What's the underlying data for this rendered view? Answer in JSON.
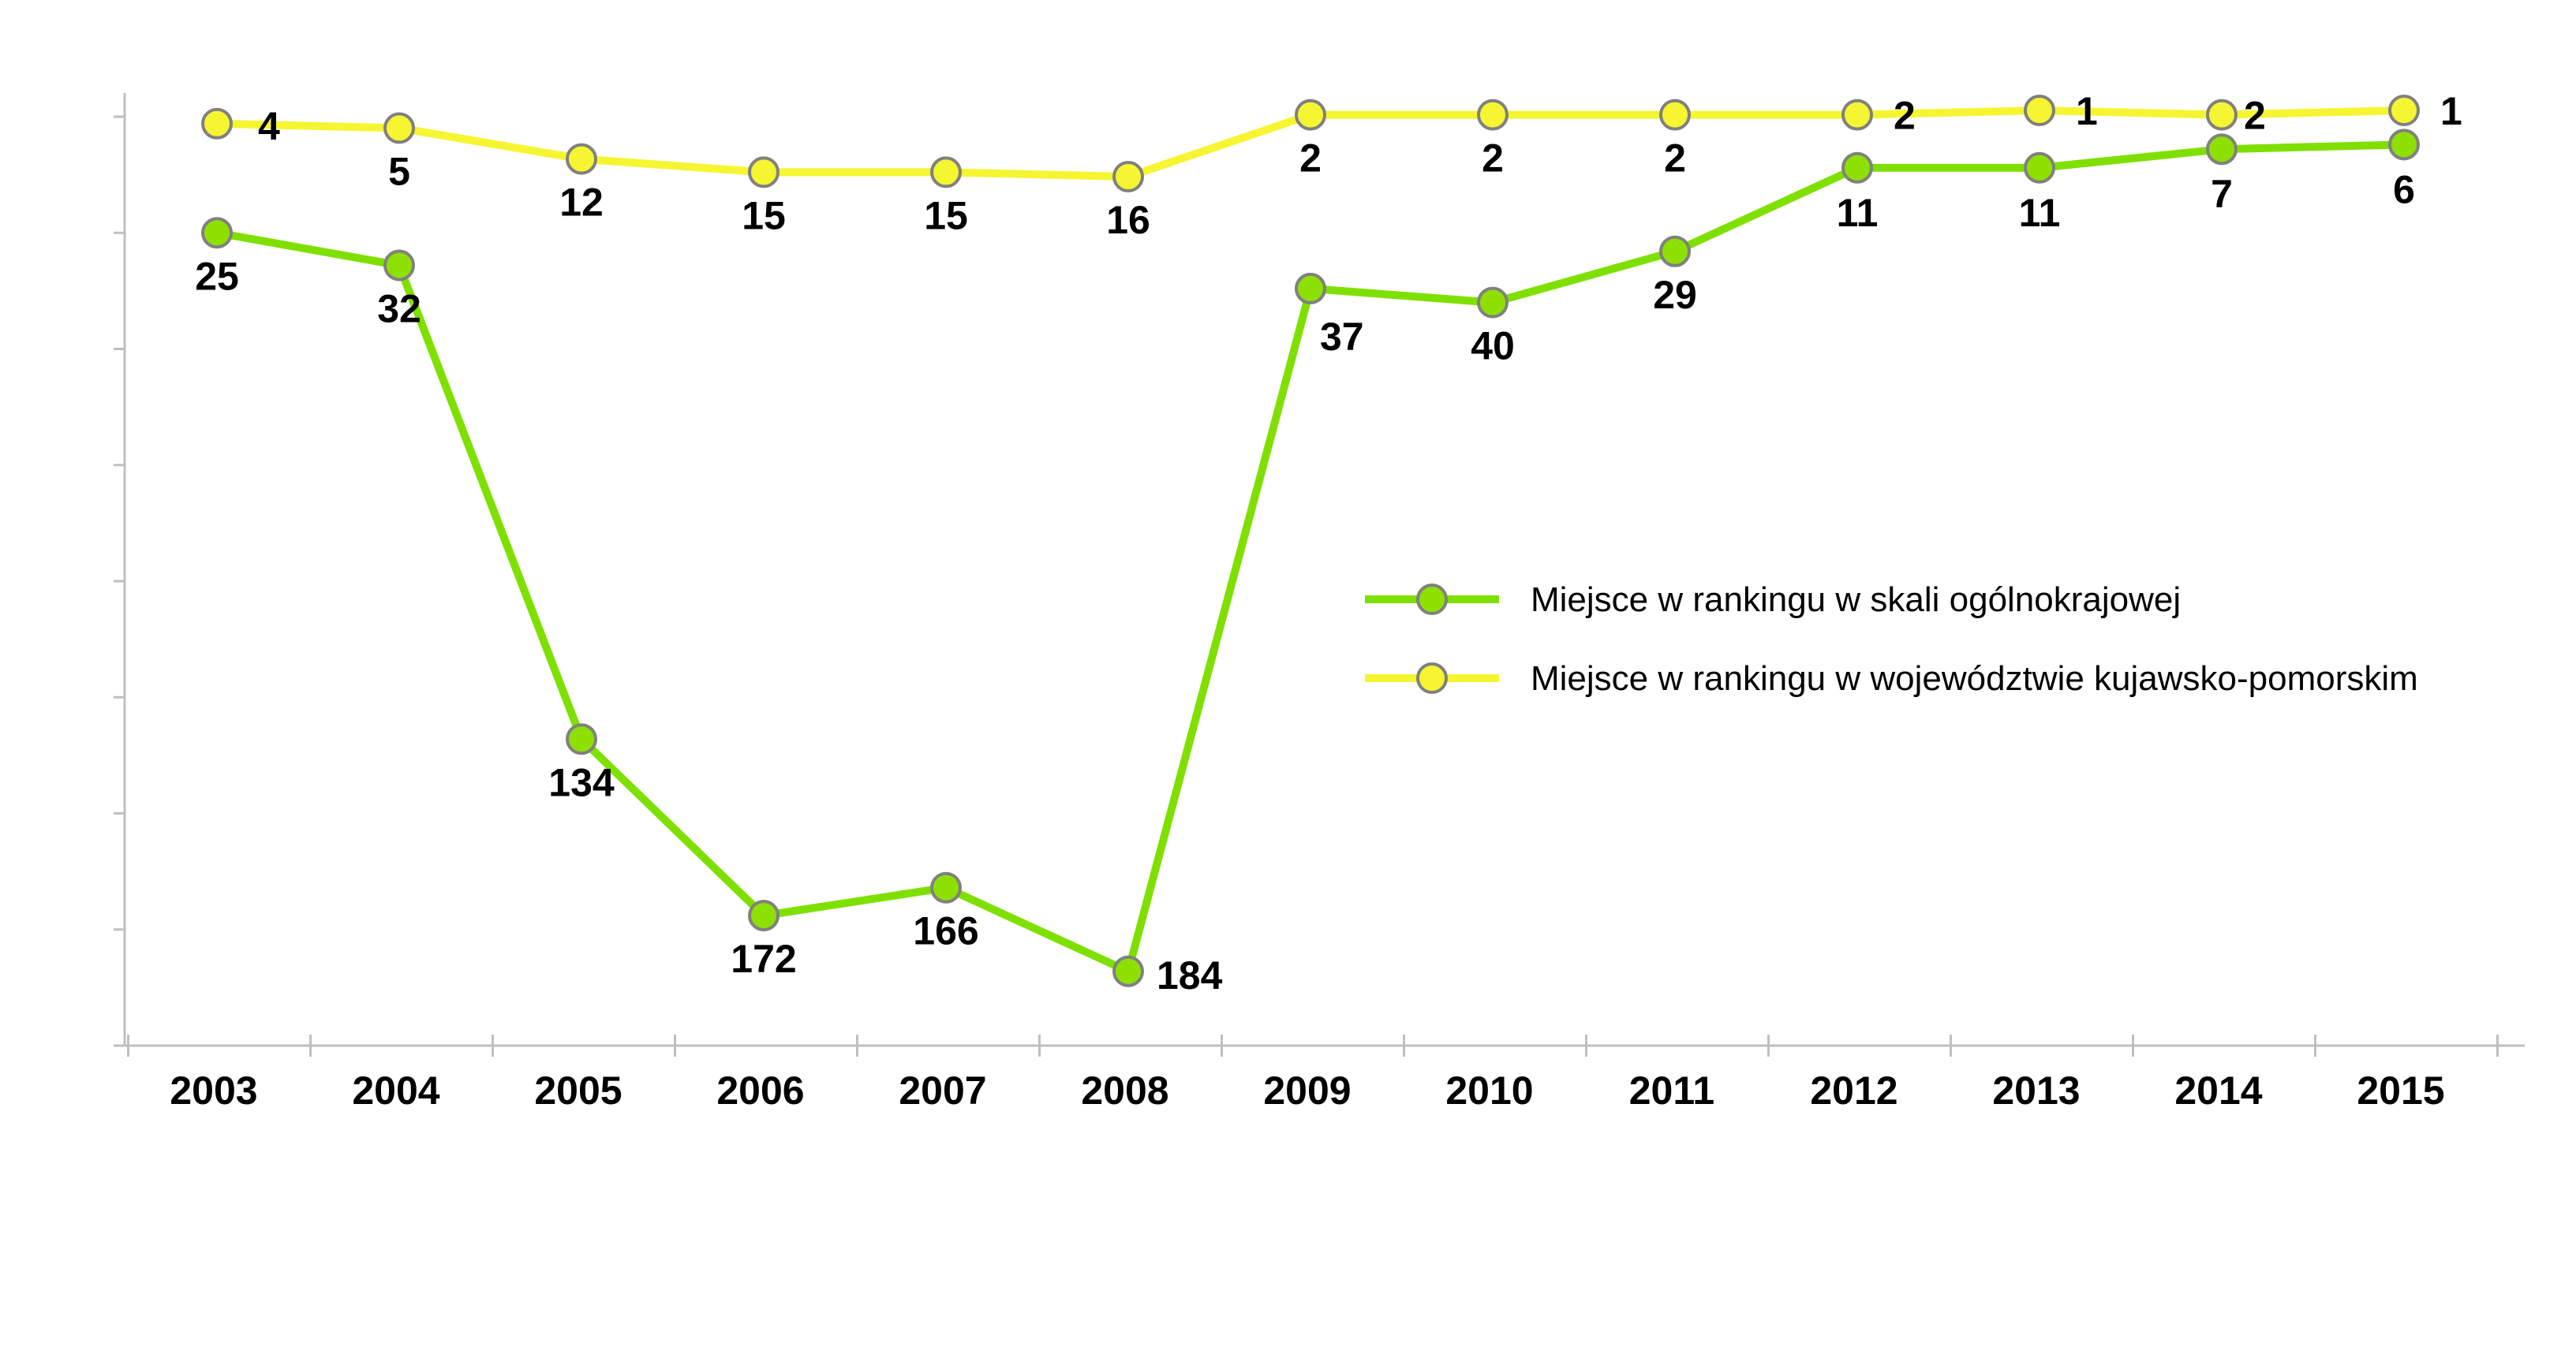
{
  "chart_data": {
    "type": "line",
    "title": "",
    "xlabel": "",
    "ylabel": "",
    "x": [
      "2003",
      "2004",
      "2005",
      "2006",
      "2007",
      "2008",
      "2009",
      "2010",
      "2011",
      "2012",
      "2013",
      "2014",
      "2015"
    ],
    "y_axis": {
      "inverted": true,
      "range": [
        0,
        200
      ],
      "tick_labels_shown": false
    },
    "grid": false,
    "legend_position": "right-middle",
    "series": [
      {
        "name": "Miejsce w rankingu w skali ogólnokrajowej",
        "color": "#7fe000",
        "marker_fill": "#8ee000",
        "values": [
          25,
          32,
          134,
          172,
          166,
          184,
          37,
          40,
          29,
          11,
          11,
          7,
          6
        ],
        "labels": [
          "25",
          "32",
          "134",
          "172",
          "166",
          "184",
          "37",
          "40",
          "29",
          "11",
          "11",
          "7",
          "6"
        ]
      },
      {
        "name": "Miejsce w rankingu w województwie kujawsko-pomorskim",
        "color": "#f5f532",
        "marker_fill": "#f5f532",
        "values": [
          4,
          5,
          12,
          15,
          15,
          16,
          2,
          2,
          2,
          2,
          1,
          2,
          1
        ],
        "labels": [
          "4",
          "5",
          "12",
          "15",
          "15",
          "16",
          "2",
          "2",
          "2",
          "2",
          "1",
          "2",
          "1"
        ]
      }
    ]
  }
}
